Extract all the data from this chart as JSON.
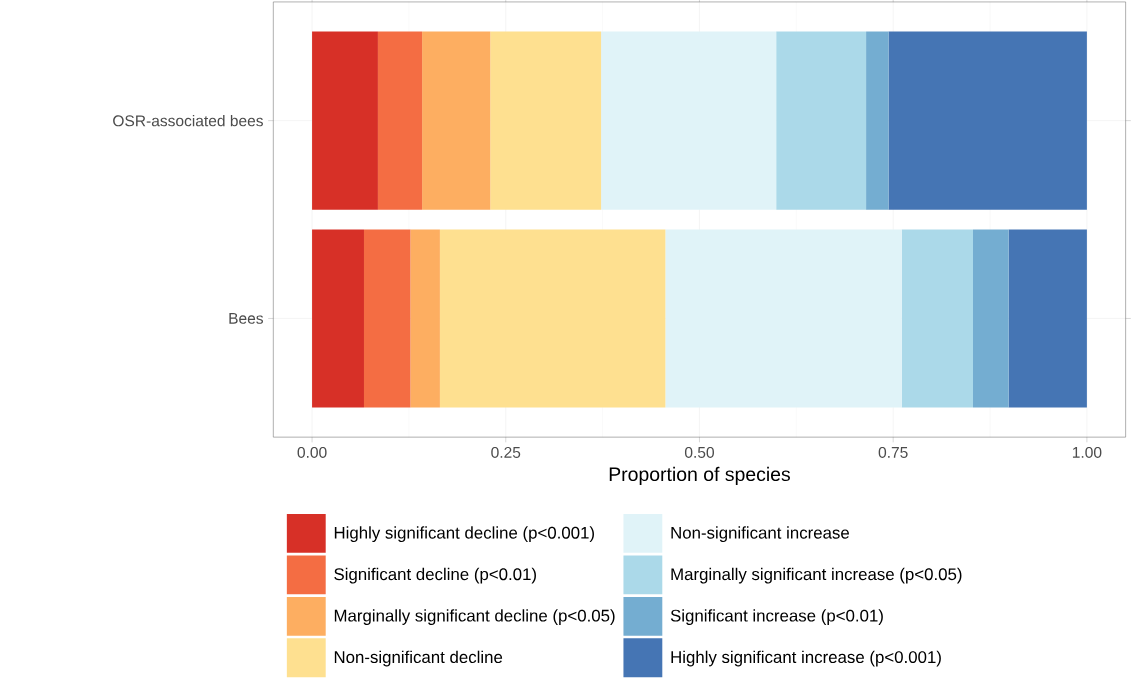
{
  "chart_data": {
    "type": "bar",
    "orientation": "horizontal",
    "stacked": true,
    "xlabel": "Proportion of species",
    "categories": [
      "OSR-associated bees",
      "Bees"
    ],
    "series": [
      {
        "name": "Highly significant decline (p<0.001)",
        "color": "#d73027",
        "values": [
          0.085,
          0.067
        ]
      },
      {
        "name": "Significant decline (p<0.01)",
        "color": "#f46d43",
        "values": [
          0.057,
          0.06
        ]
      },
      {
        "name": "Marginally significant decline (p<0.05)",
        "color": "#fdae61",
        "values": [
          0.088,
          0.038
        ]
      },
      {
        "name": "Non-significant decline",
        "color": "#fee090",
        "values": [
          0.143,
          0.291
        ]
      },
      {
        "name": "Non-significant increase",
        "color": "#e0f3f8",
        "values": [
          0.226,
          0.305
        ]
      },
      {
        "name": "Marginally significant increase (p<0.05)",
        "color": "#abd9e9",
        "values": [
          0.116,
          0.092
        ]
      },
      {
        "name": "Significant increase (p<0.01)",
        "color": "#74add1",
        "values": [
          0.029,
          0.046
        ]
      },
      {
        "name": "Highly significant increase (p<0.001)",
        "color": "#4575b4",
        "values": [
          0.256,
          0.101
        ]
      }
    ],
    "xlim": [
      -0.05,
      1.05
    ],
    "xticks": [
      {
        "value": 0,
        "label": "0.00"
      },
      {
        "value": 0.25,
        "label": "0.25"
      },
      {
        "value": 0.5,
        "label": "0.50"
      },
      {
        "value": 0.75,
        "label": "0.75"
      },
      {
        "value": 1,
        "label": "1.00"
      }
    ],
    "grid": true,
    "legend": "bottom"
  }
}
